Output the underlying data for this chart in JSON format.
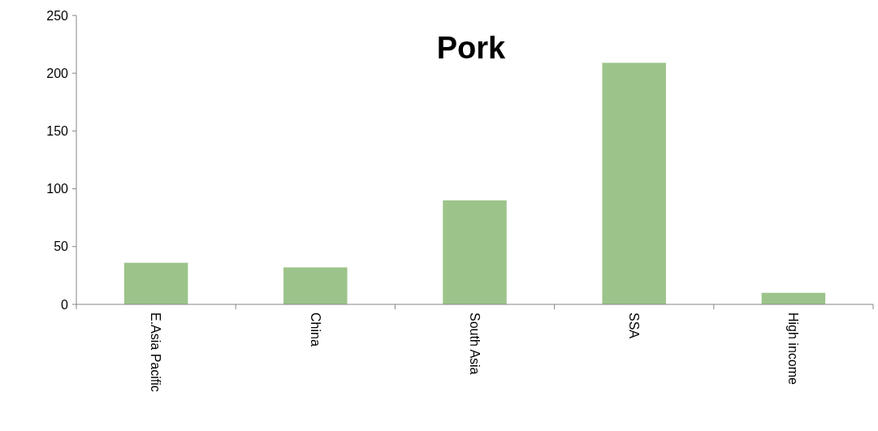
{
  "chart_data": {
    "type": "bar",
    "title": "Pork",
    "categories": [
      "E.Asia Pacific",
      "China",
      "South Asia",
      "SSA",
      "High income"
    ],
    "values": [
      36,
      32,
      90,
      209,
      10
    ],
    "color": "#9cc48a",
    "ylim": [
      0,
      250
    ],
    "yticks": [
      0,
      50,
      100,
      150,
      200,
      250
    ]
  }
}
